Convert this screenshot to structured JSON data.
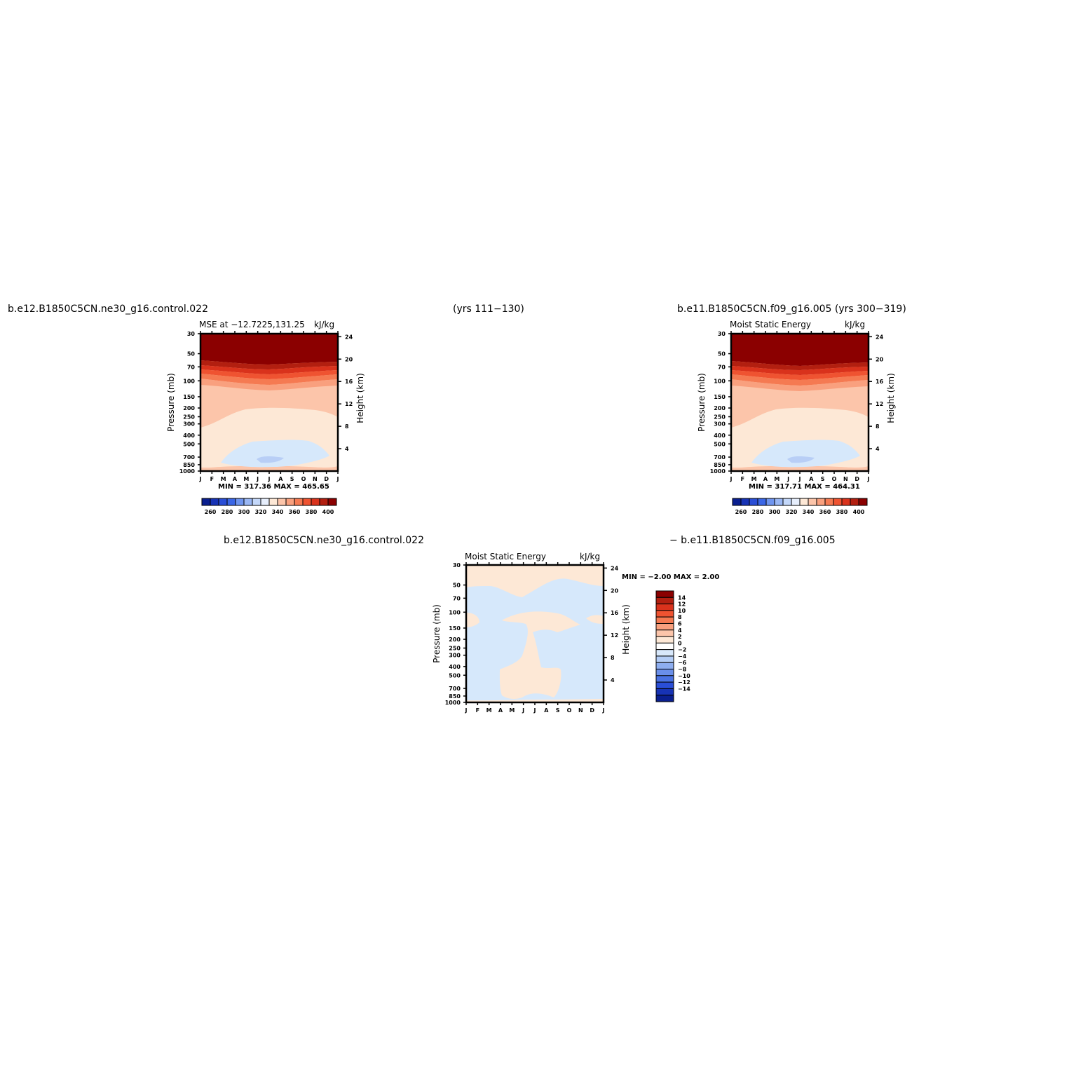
{
  "header": {
    "left_case": "b.e12.B1850C5CN.ne30_g16.control.022",
    "left_years": "(yrs 111−130)",
    "right_case": "b.e11.B1850C5CN.f09_g16.005 (yrs 300−319)",
    "diff_left": "b.e12.B1850C5CN.ne30_g16.control.022",
    "diff_right": "− b.e11.B1850C5CN.f09_g16.005"
  },
  "chart_data": [
    {
      "type": "heatmap",
      "title_left": "MSE at −12.7225,131.25",
      "title_right": "kJ/kg",
      "ylabel": "Pressure (mb)",
      "y2label": "Height (km)",
      "x_ticks": [
        "J",
        "F",
        "M",
        "A",
        "M",
        "J",
        "J",
        "A",
        "S",
        "O",
        "N",
        "D",
        "J"
      ],
      "y_ticks": [
        "30",
        "50",
        "70",
        "100",
        "150",
        "200",
        "250",
        "300",
        "400",
        "500",
        "700",
        "850",
        "1000"
      ],
      "y2_ticks": [
        "24",
        "20",
        "16",
        "12",
        "8",
        "4"
      ],
      "minmax": "MIN = 317.36 MAX = 465.65",
      "colorbar_labels": [
        "260",
        "280",
        "300",
        "320",
        "340",
        "360",
        "380",
        "400"
      ],
      "colors": [
        "#0a1f8f",
        "#1733b5",
        "#2a4ed6",
        "#3a66e6",
        "#6f95ef",
        "#9ab7f4",
        "#c4d8fa",
        "#e6eefc",
        "#fde8d6",
        "#fcc5aa",
        "#f9a07e",
        "#f57a52",
        "#ef5331",
        "#d9321c",
        "#b21f10",
        "#8b0000"
      ]
    },
    {
      "type": "heatmap",
      "title_left": "Moist Static Energy",
      "title_right": "kJ/kg",
      "ylabel": "Pressure (mb)",
      "y2label": "Height (km)",
      "x_ticks": [
        "J",
        "F",
        "M",
        "A",
        "M",
        "J",
        "J",
        "A",
        "S",
        "O",
        "N",
        "D",
        "J"
      ],
      "y_ticks": [
        "30",
        "50",
        "70",
        "100",
        "150",
        "200",
        "250",
        "300",
        "400",
        "500",
        "700",
        "850",
        "1000"
      ],
      "y2_ticks": [
        "24",
        "20",
        "16",
        "12",
        "8",
        "4"
      ],
      "minmax": "MIN = 317.71 MAX = 464.31",
      "colorbar_labels": [
        "260",
        "280",
        "300",
        "320",
        "340",
        "360",
        "380",
        "400"
      ]
    },
    {
      "type": "heatmap",
      "title_left": "Moist Static Energy",
      "title_right": "kJ/kg",
      "ylabel": "Pressure (mb)",
      "y2label": "Height (km)",
      "x_ticks": [
        "J",
        "F",
        "M",
        "A",
        "M",
        "J",
        "J",
        "A",
        "S",
        "O",
        "N",
        "D",
        "J"
      ],
      "y_ticks": [
        "30",
        "50",
        "70",
        "100",
        "150",
        "200",
        "250",
        "300",
        "400",
        "500",
        "700",
        "850",
        "1000"
      ],
      "y2_ticks": [
        "24",
        "20",
        "16",
        "12",
        "8",
        "4"
      ],
      "minmax": "MIN =   −2.00 MAX =    2.00",
      "colorbar_labels": [
        "14",
        "12",
        "10",
        "8",
        "6",
        "4",
        "2",
        "0",
        "−2",
        "−4",
        "−6",
        "−8",
        "−10",
        "−12",
        "−14"
      ],
      "colors": [
        "#8b0000",
        "#b21f10",
        "#d9321c",
        "#ef5331",
        "#f57a52",
        "#f9a07e",
        "#fcc5aa",
        "#fde8d6",
        "#ffffff",
        "#d8e8fb",
        "#b4cdf6",
        "#8eaef0",
        "#6a8fea",
        "#4a72e2",
        "#2a4ed6",
        "#1733b5",
        "#0a1f8f"
      ]
    }
  ]
}
